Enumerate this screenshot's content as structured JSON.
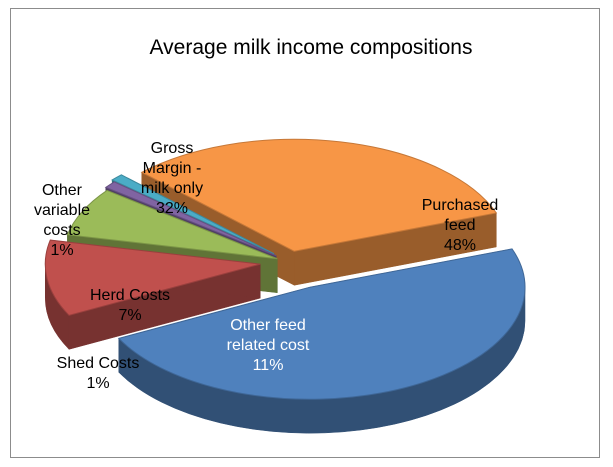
{
  "chart_data": {
    "type": "pie",
    "title": "Average milk income compositions",
    "style": "3d-exploded",
    "legend": "none",
    "slices": [
      {
        "label": "Purchased feed",
        "value": 48,
        "color": "#4f81bd"
      },
      {
        "label": "Other feed related cost",
        "value": 11,
        "color": "#c0504d"
      },
      {
        "label": "Herd Costs",
        "value": 7,
        "color": "#9bbb59"
      },
      {
        "label": "Shed Costs",
        "value": 1,
        "color": "#8064a2"
      },
      {
        "label": "Other variable costs",
        "value": 1,
        "color": "#4bacc6"
      },
      {
        "label": "Gross Margin - milk only",
        "value": 32,
        "color": "#f79646"
      }
    ]
  }
}
